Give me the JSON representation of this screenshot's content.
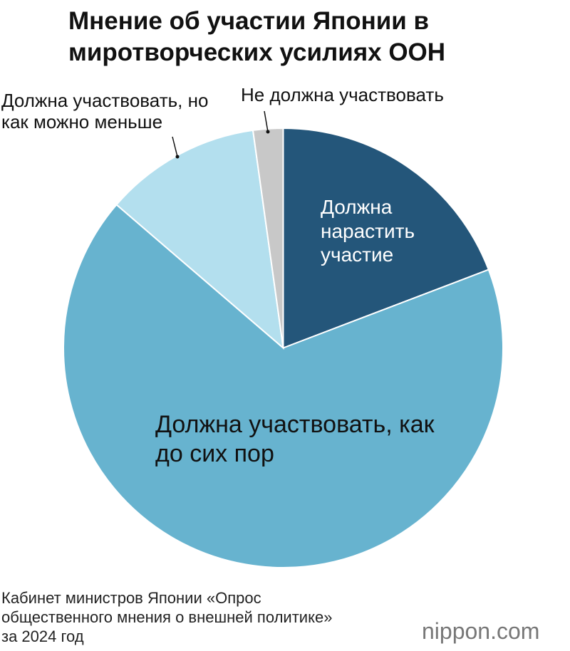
{
  "chart_data": {
    "type": "pie",
    "title": "Мнение об участии Японии в миротворческих усилиях ООН",
    "categories": [
      "Должна нарастить участие",
      "Должна участвовать, как до сих пор",
      "Должна участвовать, но как можно меньше",
      "Не должна участвовать"
    ],
    "values": [
      19.2,
      67.1,
      11.5,
      2.2
    ],
    "colors": [
      "#24567a",
      "#67b3cf",
      "#b3dfee",
      "#c8c8c8"
    ],
    "source": "Кабинет министров Японии «Опрос общественного мнения о внешней политике» за 2024 год",
    "logo": "nippon.com"
  }
}
